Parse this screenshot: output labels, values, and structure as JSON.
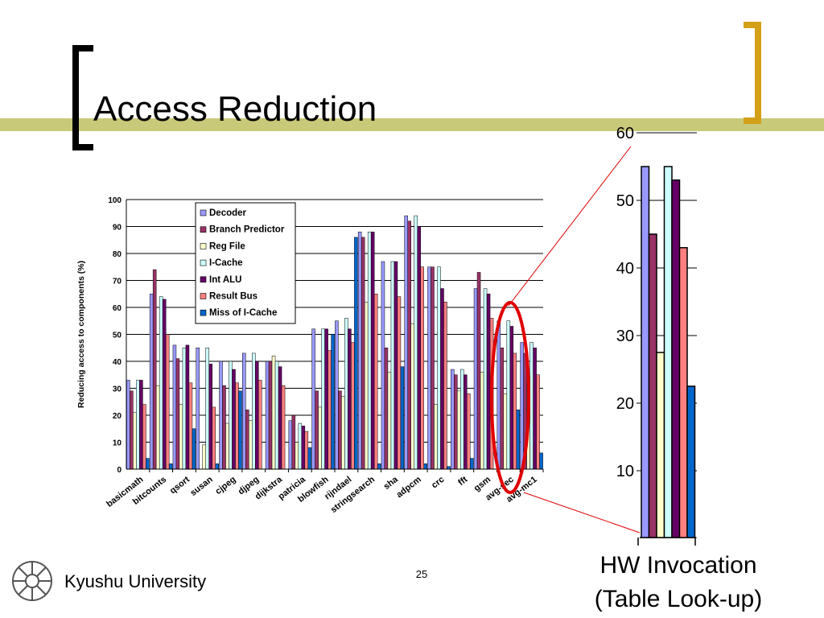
{
  "slide": {
    "title": "Access Reduction",
    "page_number": "25",
    "university": "Kyushu University",
    "caption_line1": "HW Invocation",
    "caption_line2": "(Table Look-up)",
    "accent_color": "#D4A017",
    "bar_color": "#C9C97A",
    "highlight_color": "#E00000"
  },
  "chart_data": [
    {
      "type": "bar",
      "title": "",
      "xlabel": "",
      "ylabel": "Reducing access to components (%)",
      "ylim": [
        0,
        100
      ],
      "yticks": [
        0,
        10,
        20,
        30,
        40,
        50,
        60,
        70,
        80,
        90,
        100
      ],
      "grid": true,
      "legend_position": "top",
      "categories": [
        "basicmath",
        "bitcounts",
        "qsort",
        "susan",
        "cjpeg",
        "djpeg",
        "dijkstra",
        "patricia",
        "blowfish",
        "rijndael",
        "stringsearch",
        "sha",
        "adpcm",
        "crc",
        "fft",
        "gsm",
        "avg-sec",
        "avg-mc1"
      ],
      "series": [
        {
          "name": "Decoder",
          "color": "#9999FF",
          "values": [
            33,
            65,
            46,
            45,
            40,
            43,
            40,
            18,
            52,
            55,
            88,
            77,
            94,
            75,
            37,
            67,
            55,
            47
          ]
        },
        {
          "name": "Branch Predictor",
          "color": "#993366",
          "values": [
            29,
            74,
            41,
            0,
            31,
            22,
            40,
            20,
            29,
            29,
            86,
            45,
            92,
            75,
            35,
            73,
            45,
            43
          ]
        },
        {
          "name": "Reg File",
          "color": "#FFFFCC",
          "values": [
            21,
            31,
            24,
            9,
            17,
            18,
            42,
            10,
            23,
            27,
            62,
            36,
            54,
            24,
            29,
            36,
            28,
            32
          ]
        },
        {
          "name": "I-Cache",
          "color": "#CCFFFF",
          "values": [
            33,
            64,
            45,
            45,
            40,
            43,
            40,
            17,
            52,
            56,
            88,
            77,
            94,
            75,
            37,
            67,
            55,
            47
          ]
        },
        {
          "name": "Int ALU",
          "color": "#660066",
          "values": [
            33,
            63,
            46,
            39,
            37,
            40,
            38,
            16,
            52,
            52,
            88,
            77,
            90,
            67,
            35,
            65,
            53,
            45
          ]
        },
        {
          "name": "Result Bus",
          "color": "#FF8080",
          "values": [
            24,
            50,
            32,
            23,
            32,
            33,
            31,
            14,
            44,
            47,
            65,
            64,
            75,
            62,
            28,
            56,
            43,
            35
          ]
        },
        {
          "name": "Miss of I-Cache",
          "color": "#0066CC",
          "values": [
            4,
            2,
            15,
            2,
            29,
            0,
            0,
            8,
            50,
            86,
            2,
            38,
            2,
            1,
            4,
            0,
            22,
            6
          ]
        }
      ]
    },
    {
      "type": "bar",
      "title": "",
      "xlabel": "",
      "ylabel": "",
      "ylim": [
        0,
        60
      ],
      "yticks": [
        10,
        20,
        30,
        40,
        50,
        60
      ],
      "grid": false,
      "categories": [
        "HW Invocation (Table Look-up)"
      ],
      "series": [
        {
          "name": "Decoder",
          "values": [
            55
          ]
        },
        {
          "name": "Branch Predictor",
          "values": [
            45
          ]
        },
        {
          "name": "Reg File",
          "values": [
            27.5
          ]
        },
        {
          "name": "I-Cache",
          "values": [
            55
          ]
        },
        {
          "name": "Int ALU",
          "values": [
            53
          ]
        },
        {
          "name": "Result Bus",
          "values": [
            43
          ]
        },
        {
          "name": "Miss of I-Cache",
          "values": [
            22.5
          ]
        }
      ]
    }
  ]
}
